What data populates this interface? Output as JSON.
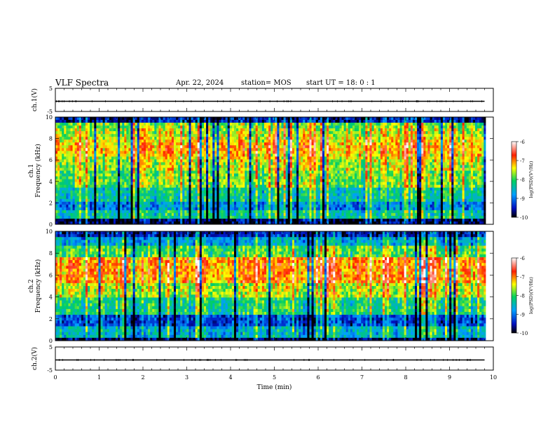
{
  "header": {
    "title": "VLF Spectra",
    "date": "Apr. 22, 2024",
    "station": "station= MOS",
    "start_ut": "start UT =  18: 0  : 1"
  },
  "chart_data": [
    {
      "type": "line",
      "name": "ch1-waveform",
      "ylabel": "ch.1(V)",
      "ylim": [
        -5,
        5
      ],
      "yticks": [
        "5",
        "-5"
      ],
      "xlim": [
        0,
        10
      ],
      "x": [
        0,
        9.8
      ],
      "values": [
        -0.6,
        -0.6
      ]
    },
    {
      "type": "heatmap",
      "name": "ch1-spectrogram",
      "ylabel": "ch.1\nFrequency (kHz)",
      "ylim": [
        0,
        10
      ],
      "yticks": [
        "0",
        "2",
        "4",
        "6",
        "8",
        "10"
      ],
      "xlim": [
        0,
        10
      ],
      "data_xmax": 9.83,
      "colorbar": {
        "label": "log(PSD)(V²/Hz)",
        "range": [
          -10,
          -6
        ],
        "ticks": [
          "-6",
          "-7",
          "-8",
          "-9",
          "-10"
        ]
      }
    },
    {
      "type": "heatmap",
      "name": "ch2-spectrogram",
      "ylabel": "ch.2\nFrequency (kHz)",
      "ylim": [
        0,
        10
      ],
      "yticks": [
        "0",
        "2",
        "4",
        "6",
        "8",
        "10"
      ],
      "xlim": [
        0,
        10
      ],
      "data_xmax": 9.83,
      "colorbar": {
        "label": "log(PSD)(V²/Hz)",
        "range": [
          -10,
          -6
        ],
        "ticks": [
          "-6",
          "-7",
          "-8",
          "-9",
          "-10"
        ]
      }
    },
    {
      "type": "line",
      "name": "ch2-waveform",
      "ylabel": "ch.2(V)",
      "ylim": [
        -5,
        5
      ],
      "yticks": [
        "5",
        "-5"
      ],
      "xlim": [
        0,
        10
      ],
      "x": [
        0,
        9.8
      ],
      "values": [
        -0.6,
        -0.6
      ]
    }
  ],
  "xaxis": {
    "label": "Time (min)",
    "ticks": [
      "0",
      "1",
      "2",
      "3",
      "4",
      "5",
      "6",
      "7",
      "8",
      "9",
      "10"
    ]
  }
}
